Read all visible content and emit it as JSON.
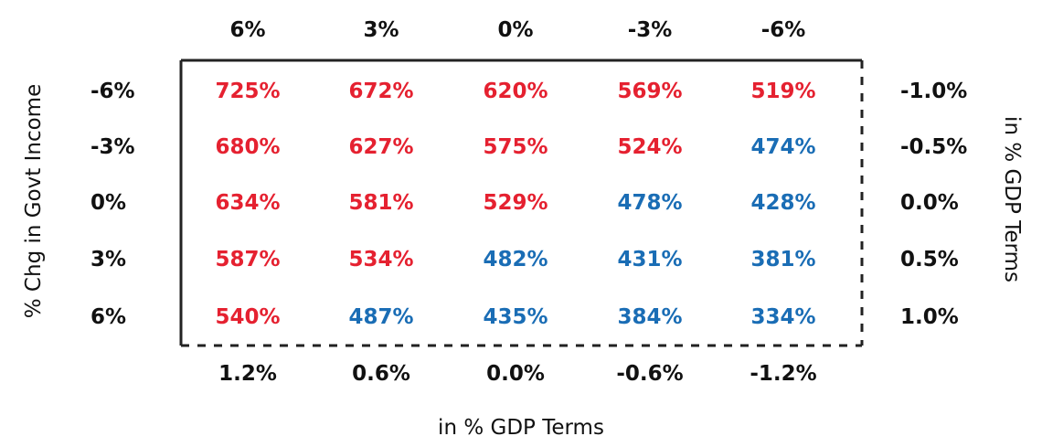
{
  "colors": {
    "above": "#e52130",
    "below": "#1a6db5",
    "text": "#111111",
    "frame": "#222222"
  },
  "chart_data": {
    "type": "table",
    "top_header": [
      "6%",
      "3%",
      "0%",
      "-3%",
      "-6%"
    ],
    "bottom_header": [
      "1.2%",
      "0.6%",
      "0.0%",
      "-0.6%",
      "-1.2%"
    ],
    "left_header": [
      "-6%",
      "-3%",
      "0%",
      "3%",
      "6%"
    ],
    "right_header": [
      "-1.0%",
      "-0.5%",
      "0.0%",
      "0.5%",
      "1.0%"
    ],
    "left_axis_title": "% Chg in Govt Income",
    "right_axis_title": "in % GDP Terms",
    "bottom_axis_title": "in % GDP Terms",
    "cells": [
      [
        "725%",
        "672%",
        "620%",
        "569%",
        "519%"
      ],
      [
        "680%",
        "627%",
        "575%",
        "524%",
        "474%"
      ],
      [
        "634%",
        "581%",
        "529%",
        "478%",
        "428%"
      ],
      [
        "587%",
        "534%",
        "482%",
        "431%",
        "381%"
      ],
      [
        "540%",
        "487%",
        "435%",
        "384%",
        "334%"
      ]
    ],
    "cell_color_group": [
      [
        "above",
        "above",
        "above",
        "above",
        "above"
      ],
      [
        "above",
        "above",
        "above",
        "above",
        "below"
      ],
      [
        "above",
        "above",
        "above",
        "below",
        "below"
      ],
      [
        "above",
        "above",
        "below",
        "below",
        "below"
      ],
      [
        "above",
        "below",
        "below",
        "below",
        "below"
      ]
    ]
  }
}
